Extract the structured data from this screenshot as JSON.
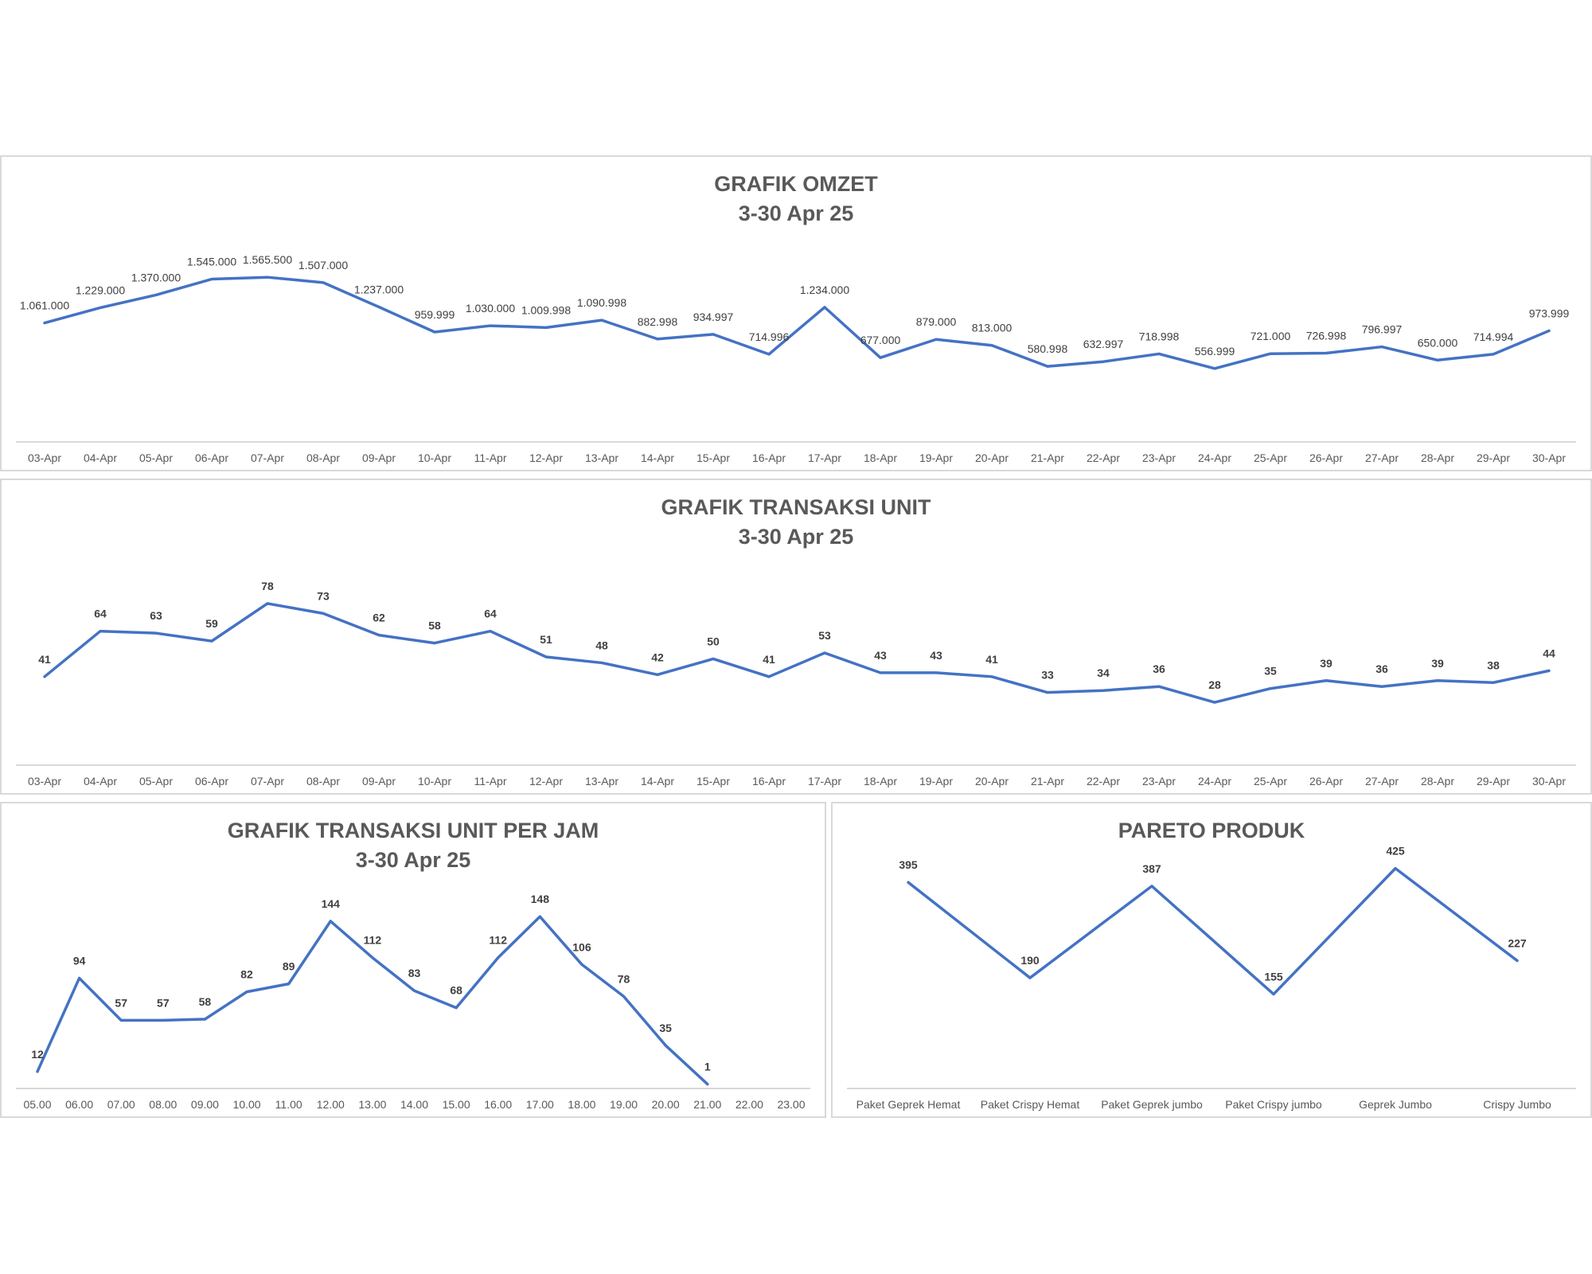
{
  "colors": {
    "line": "#4472c4",
    "axis": "#d9d9d9",
    "title": "#595959",
    "label": "#404040",
    "tick": "#595959"
  },
  "chart_data": [
    {
      "type": "line",
      "title": "GRAFIK OMZET",
      "subtitle": "3-30 Apr 25",
      "categories": [
        "03-Apr",
        "04-Apr",
        "05-Apr",
        "06-Apr",
        "07-Apr",
        "08-Apr",
        "09-Apr",
        "10-Apr",
        "11-Apr",
        "12-Apr",
        "13-Apr",
        "14-Apr",
        "15-Apr",
        "16-Apr",
        "17-Apr",
        "18-Apr",
        "19-Apr",
        "20-Apr",
        "21-Apr",
        "22-Apr",
        "23-Apr",
        "24-Apr",
        "25-Apr",
        "26-Apr",
        "27-Apr",
        "28-Apr",
        "29-Apr",
        "30-Apr"
      ],
      "values": [
        1061000,
        1229000,
        1370000,
        1545000,
        1565500,
        1507000,
        1237000,
        959999,
        1030000,
        1009998,
        1090998,
        882998,
        934997,
        714996,
        1234000,
        677000,
        879000,
        813000,
        580998,
        632997,
        718998,
        556999,
        721000,
        726998,
        796997,
        650000,
        714994,
        973999
      ],
      "data_labels": [
        "1.061.000",
        "1.229.000",
        "1.370.000",
        "1.545.000",
        "1.565.500",
        "1.507.000",
        "1.237.000",
        "959.999",
        "1.030.000",
        "1.009.998",
        "1.090.998",
        "882.998",
        "934.997",
        "714.996",
        "1.234.000",
        "677.000",
        "879.000",
        "813.000",
        "580.998",
        "632.997",
        "718.998",
        "556.999",
        "721.000",
        "726.998",
        "796.997",
        "650.000",
        "714.994",
        "973.999"
      ],
      "label_style": "normal"
    },
    {
      "type": "line",
      "title": "GRAFIK TRANSAKSI UNIT",
      "subtitle": "3-30 Apr 25",
      "categories": [
        "03-Apr",
        "04-Apr",
        "05-Apr",
        "06-Apr",
        "07-Apr",
        "08-Apr",
        "09-Apr",
        "10-Apr",
        "11-Apr",
        "12-Apr",
        "13-Apr",
        "14-Apr",
        "15-Apr",
        "16-Apr",
        "17-Apr",
        "18-Apr",
        "19-Apr",
        "20-Apr",
        "21-Apr",
        "22-Apr",
        "23-Apr",
        "24-Apr",
        "25-Apr",
        "26-Apr",
        "27-Apr",
        "28-Apr",
        "29-Apr",
        "30-Apr"
      ],
      "values": [
        41,
        64,
        63,
        59,
        78,
        73,
        62,
        58,
        64,
        51,
        48,
        42,
        50,
        41,
        53,
        43,
        43,
        41,
        33,
        34,
        36,
        28,
        35,
        39,
        36,
        39,
        38,
        44
      ],
      "label_style": "bold"
    },
    {
      "type": "line",
      "title": "GRAFIK TRANSAKSI UNIT PER JAM",
      "subtitle": "3-30 Apr 25",
      "categories": [
        "05.00",
        "06.00",
        "07.00",
        "08.00",
        "09.00",
        "10.00",
        "11.00",
        "12.00",
        "13.00",
        "14.00",
        "15.00",
        "16.00",
        "17.00",
        "18.00",
        "19.00",
        "20.00",
        "21.00",
        "22.00",
        "23.00"
      ],
      "values": [
        12,
        94,
        57,
        57,
        58,
        82,
        89,
        144,
        112,
        83,
        68,
        112,
        148,
        106,
        78,
        35,
        1,
        null,
        null
      ],
      "label_style": "bold"
    },
    {
      "type": "line",
      "title": "PARETO PRODUK",
      "subtitle": "",
      "categories": [
        "Paket Geprek Hemat",
        "Paket Crispy Hemat",
        "Paket Geprek jumbo",
        "Paket Crispy jumbo",
        "Geprek Jumbo",
        "Crispy Jumbo"
      ],
      "values": [
        395,
        190,
        387,
        155,
        425,
        227
      ],
      "label_style": "bold"
    }
  ]
}
